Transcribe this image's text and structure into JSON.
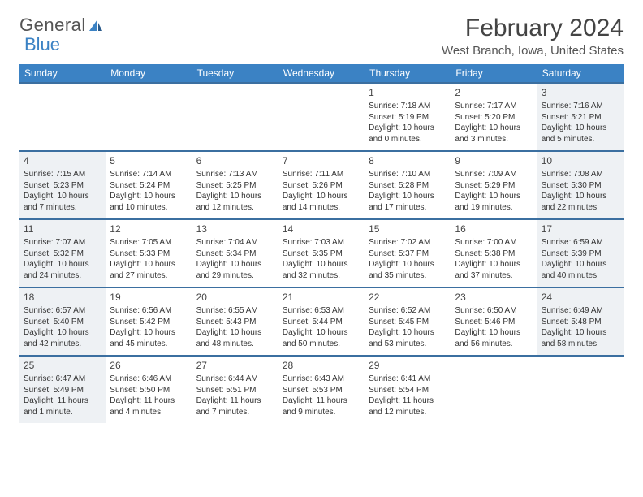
{
  "logo": {
    "text1": "General",
    "text2": "Blue"
  },
  "title": "February 2024",
  "location": "West Branch, Iowa, United States",
  "colors": {
    "header_bg": "#3b82c4",
    "border": "#3b6fa0",
    "shaded": "#eef1f4",
    "text": "#333333"
  },
  "day_names": [
    "Sunday",
    "Monday",
    "Tuesday",
    "Wednesday",
    "Thursday",
    "Friday",
    "Saturday"
  ],
  "weeks": [
    [
      null,
      null,
      null,
      null,
      {
        "d": "1",
        "sr": "7:18 AM",
        "ss": "5:19 PM",
        "dl": "10 hours and 0 minutes."
      },
      {
        "d": "2",
        "sr": "7:17 AM",
        "ss": "5:20 PM",
        "dl": "10 hours and 3 minutes."
      },
      {
        "d": "3",
        "sr": "7:16 AM",
        "ss": "5:21 PM",
        "dl": "10 hours and 5 minutes.",
        "shaded": true
      }
    ],
    [
      {
        "d": "4",
        "sr": "7:15 AM",
        "ss": "5:23 PM",
        "dl": "10 hours and 7 minutes.",
        "shaded": true
      },
      {
        "d": "5",
        "sr": "7:14 AM",
        "ss": "5:24 PM",
        "dl": "10 hours and 10 minutes."
      },
      {
        "d": "6",
        "sr": "7:13 AM",
        "ss": "5:25 PM",
        "dl": "10 hours and 12 minutes."
      },
      {
        "d": "7",
        "sr": "7:11 AM",
        "ss": "5:26 PM",
        "dl": "10 hours and 14 minutes."
      },
      {
        "d": "8",
        "sr": "7:10 AM",
        "ss": "5:28 PM",
        "dl": "10 hours and 17 minutes."
      },
      {
        "d": "9",
        "sr": "7:09 AM",
        "ss": "5:29 PM",
        "dl": "10 hours and 19 minutes."
      },
      {
        "d": "10",
        "sr": "7:08 AM",
        "ss": "5:30 PM",
        "dl": "10 hours and 22 minutes.",
        "shaded": true
      }
    ],
    [
      {
        "d": "11",
        "sr": "7:07 AM",
        "ss": "5:32 PM",
        "dl": "10 hours and 24 minutes.",
        "shaded": true
      },
      {
        "d": "12",
        "sr": "7:05 AM",
        "ss": "5:33 PM",
        "dl": "10 hours and 27 minutes."
      },
      {
        "d": "13",
        "sr": "7:04 AM",
        "ss": "5:34 PM",
        "dl": "10 hours and 29 minutes."
      },
      {
        "d": "14",
        "sr": "7:03 AM",
        "ss": "5:35 PM",
        "dl": "10 hours and 32 minutes."
      },
      {
        "d": "15",
        "sr": "7:02 AM",
        "ss": "5:37 PM",
        "dl": "10 hours and 35 minutes."
      },
      {
        "d": "16",
        "sr": "7:00 AM",
        "ss": "5:38 PM",
        "dl": "10 hours and 37 minutes."
      },
      {
        "d": "17",
        "sr": "6:59 AM",
        "ss": "5:39 PM",
        "dl": "10 hours and 40 minutes.",
        "shaded": true
      }
    ],
    [
      {
        "d": "18",
        "sr": "6:57 AM",
        "ss": "5:40 PM",
        "dl": "10 hours and 42 minutes.",
        "shaded": true
      },
      {
        "d": "19",
        "sr": "6:56 AM",
        "ss": "5:42 PM",
        "dl": "10 hours and 45 minutes."
      },
      {
        "d": "20",
        "sr": "6:55 AM",
        "ss": "5:43 PM",
        "dl": "10 hours and 48 minutes."
      },
      {
        "d": "21",
        "sr": "6:53 AM",
        "ss": "5:44 PM",
        "dl": "10 hours and 50 minutes."
      },
      {
        "d": "22",
        "sr": "6:52 AM",
        "ss": "5:45 PM",
        "dl": "10 hours and 53 minutes."
      },
      {
        "d": "23",
        "sr": "6:50 AM",
        "ss": "5:46 PM",
        "dl": "10 hours and 56 minutes."
      },
      {
        "d": "24",
        "sr": "6:49 AM",
        "ss": "5:48 PM",
        "dl": "10 hours and 58 minutes.",
        "shaded": true
      }
    ],
    [
      {
        "d": "25",
        "sr": "6:47 AM",
        "ss": "5:49 PM",
        "dl": "11 hours and 1 minute.",
        "shaded": true
      },
      {
        "d": "26",
        "sr": "6:46 AM",
        "ss": "5:50 PM",
        "dl": "11 hours and 4 minutes."
      },
      {
        "d": "27",
        "sr": "6:44 AM",
        "ss": "5:51 PM",
        "dl": "11 hours and 7 minutes."
      },
      {
        "d": "28",
        "sr": "6:43 AM",
        "ss": "5:53 PM",
        "dl": "11 hours and 9 minutes."
      },
      {
        "d": "29",
        "sr": "6:41 AM",
        "ss": "5:54 PM",
        "dl": "11 hours and 12 minutes."
      },
      null,
      null
    ]
  ],
  "labels": {
    "sunrise": "Sunrise: ",
    "sunset": "Sunset: ",
    "daylight": "Daylight: "
  }
}
